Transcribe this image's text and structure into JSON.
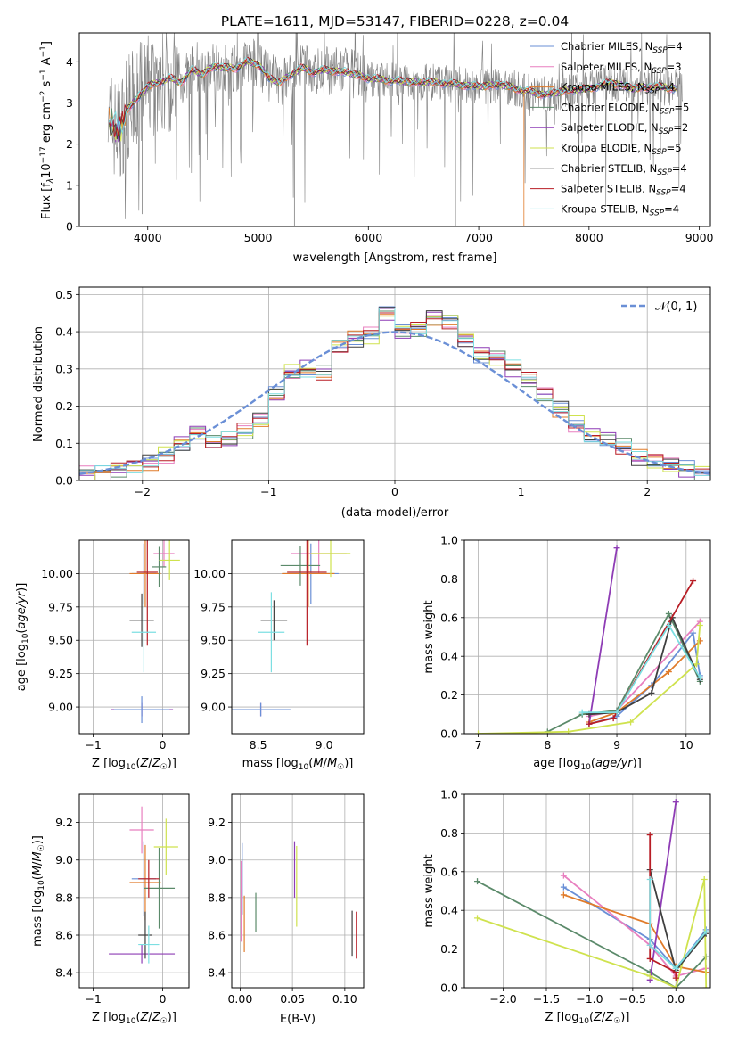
{
  "figure_title": "PLATE=1611, MJD=53147, FIBERID=0228, z=0.04",
  "colors": {
    "data": "#808080",
    "series": [
      "#6a8fd6",
      "#e87fbf",
      "#e07b2a",
      "#5b8a6a",
      "#8e3cb5",
      "#cfe24e",
      "#3f3f3f",
      "#b81d25",
      "#7ddfe2"
    ]
  },
  "chart_data": [
    {
      "type": "line",
      "panel": "spectrum",
      "title": "PLATE=1611, MJD=53147, FIBERID=0228, z=0.04",
      "xlabel": "wavelength [Angstrom, rest frame]",
      "ylabel": "Flux [f_λ 10^-17 erg cm^-2 s^-1 A^-1]",
      "xlim": [
        3380,
        9100
      ],
      "ylim": [
        0,
        4.7
      ],
      "xticks": [
        4000,
        5000,
        6000,
        7000,
        8000,
        9000
      ],
      "yticks": [
        0,
        1,
        2,
        3,
        4
      ],
      "legend": "right",
      "series_names": [
        "Chabrier MILES, N_SSP=4",
        "Salpeter MILES, N_SSP=3",
        "Kroupa MILES, N_SSP=4",
        "Chabrier ELODIE, N_SSP=5",
        "Salpeter ELODIE, N_SSP=2",
        "Kroupa ELODIE, N_SSP=5",
        "Chabrier STELIB, N_SSP=4",
        "Salpeter STELIB, N_SSP=4",
        "Kroupa STELIB, N_SSP=4"
      ],
      "model_continuum": {
        "x": [
          3650,
          3700,
          3750,
          3800,
          3900,
          4000,
          4100,
          4200,
          4300,
          4400,
          4500,
          4600,
          4700,
          4800,
          4900,
          5000,
          5100,
          5200,
          5300,
          5400,
          5500,
          5600,
          5800,
          6000,
          6200,
          6400,
          6600,
          6800,
          7000,
          7200,
          7400,
          7600,
          7800,
          8000,
          8200,
          8400,
          8600,
          8800
        ],
        "y": [
          2.6,
          2.4,
          2.3,
          2.8,
          3.1,
          3.4,
          3.5,
          3.6,
          3.5,
          3.8,
          3.7,
          3.9,
          3.85,
          3.85,
          4.0,
          3.95,
          3.6,
          3.5,
          3.7,
          3.85,
          3.75,
          3.8,
          3.75,
          3.6,
          3.55,
          3.5,
          3.5,
          3.45,
          3.4,
          3.45,
          3.3,
          3.2,
          3.3,
          3.35,
          3.5,
          3.35,
          3.4,
          3.35
        ]
      }
    },
    {
      "type": "line",
      "panel": "residuals",
      "xlabel": "(data-model)/error",
      "ylabel": "Normed distribution",
      "xlim": [
        -2.5,
        2.5
      ],
      "ylim": [
        0,
        0.52
      ],
      "xticks": [
        -2,
        -1,
        0,
        1,
        2
      ],
      "yticks": [
        0.0,
        0.1,
        0.2,
        0.3,
        0.4,
        0.5
      ],
      "grid": true,
      "legend": "top-right",
      "reference_label": "𝒩(0, 1)",
      "bin_edges": [
        -2.5,
        -2.375,
        -2.25,
        -2.125,
        -2.0,
        -1.875,
        -1.75,
        -1.625,
        -1.5,
        -1.375,
        -1.25,
        -1.125,
        -1.0,
        -0.875,
        -0.75,
        -0.625,
        -0.5,
        -0.375,
        -0.25,
        -0.125,
        0.0,
        0.125,
        0.25,
        0.375,
        0.5,
        0.625,
        0.75,
        0.875,
        1.0,
        1.125,
        1.25,
        1.375,
        1.5,
        1.625,
        1.75,
        1.875,
        2.0,
        2.125,
        2.25,
        2.375,
        2.5
      ],
      "histogram_values": [
        0.02,
        0.02,
        0.03,
        0.04,
        0.05,
        0.07,
        0.1,
        0.13,
        0.1,
        0.11,
        0.13,
        0.16,
        0.23,
        0.29,
        0.3,
        0.29,
        0.36,
        0.38,
        0.39,
        0.45,
        0.4,
        0.41,
        0.44,
        0.43,
        0.38,
        0.34,
        0.33,
        0.3,
        0.27,
        0.23,
        0.19,
        0.15,
        0.12,
        0.11,
        0.09,
        0.06,
        0.05,
        0.04,
        0.03,
        0.02
      ]
    },
    {
      "type": "scatter",
      "panel": "age_vs_Z",
      "xlabel": "Z [log10(Z/Z☉)]",
      "ylabel": "age [log10(age/yr)]",
      "xlim": [
        -1.2,
        0.38
      ],
      "ylim": [
        8.8,
        10.25
      ],
      "xticks": [
        -1,
        0
      ],
      "yticks": [
        9.0,
        9.25,
        9.5,
        9.75,
        10.0
      ],
      "grid": true,
      "points": [
        {
          "x": -0.27,
          "y": 10.0,
          "xerr": 0.35,
          "yerr": 0.45
        },
        {
          "x": 0.02,
          "y": 10.15,
          "xerr": 0.3,
          "yerr": 0.2
        },
        {
          "x": -0.25,
          "y": 10.0,
          "xerr": 0.45,
          "yerr": 0.5
        },
        {
          "x": -0.05,
          "y": 10.05,
          "xerr": 0.2,
          "yerr": 0.3
        },
        {
          "x": -0.3,
          "y": 8.98,
          "xerr": 0.9,
          "yerr": 0.1
        },
        {
          "x": 0.1,
          "y": 10.1,
          "xerr": 0.3,
          "yerr": 0.3
        },
        {
          "x": -0.3,
          "y": 9.65,
          "xerr": 0.35,
          "yerr": 0.4
        },
        {
          "x": -0.22,
          "y": 10.01,
          "xerr": 0.3,
          "yerr": 1.1
        },
        {
          "x": -0.27,
          "y": 9.56,
          "xerr": 0.35,
          "yerr": 0.6
        },
        {
          "x": -0.3,
          "y": 8.98,
          "xerr": 0.8,
          "yerr": 0.2
        }
      ]
    },
    {
      "type": "scatter",
      "panel": "age_vs_mass",
      "xlabel": "mass [log10(M/M☉)]",
      "ylabel": "",
      "xlim": [
        8.3,
        9.3
      ],
      "ylim": [
        8.8,
        10.25
      ],
      "xticks": [
        8.5,
        9.0
      ],
      "yticks": [
        9.0,
        9.25,
        9.5,
        9.75,
        10.0
      ],
      "grid": true,
      "points": [
        {
          "x": 8.9,
          "y": 10.0,
          "xerr": 0.42,
          "yerr": 0.45
        },
        {
          "x": 8.96,
          "y": 10.15,
          "xerr": 0.42,
          "yerr": 0.3
        },
        {
          "x": 8.88,
          "y": 10.0,
          "xerr": 0.4,
          "yerr": 0.5
        },
        {
          "x": 8.82,
          "y": 10.06,
          "xerr": 0.3,
          "yerr": 0.3
        },
        {
          "x": 8.52,
          "y": 8.98,
          "xerr": 0.3,
          "yerr": 0.1
        },
        {
          "x": 9.05,
          "y": 10.15,
          "xerr": 0.3,
          "yerr": 0.35
        },
        {
          "x": 8.62,
          "y": 9.65,
          "xerr": 0.2,
          "yerr": 0.3
        },
        {
          "x": 8.87,
          "y": 10.01,
          "xerr": 0.3,
          "yerr": 1.1
        },
        {
          "x": 8.6,
          "y": 9.56,
          "xerr": 0.2,
          "yerr": 0.6
        },
        {
          "x": 8.52,
          "y": 8.98,
          "xerr": 0.45,
          "yerr": 0.1
        }
      ]
    },
    {
      "type": "line",
      "panel": "mass_weight_vs_age",
      "xlabel": "age [log10(age/yr)]",
      "ylabel": "mass weight",
      "xlim": [
        6.8,
        10.35
      ],
      "ylim": [
        0,
        1.0
      ],
      "xticks": [
        7,
        8,
        9,
        10
      ],
      "yticks": [
        0.0,
        0.2,
        0.4,
        0.6,
        0.8,
        1.0
      ],
      "grid": true,
      "series": [
        {
          "x": [
            8.6,
            9.0,
            9.5,
            10.1,
            10.2
          ],
          "y": [
            0.05,
            0.09,
            0.25,
            0.52,
            0.3
          ]
        },
        {
          "x": [
            8.6,
            9.0,
            10.2
          ],
          "y": [
            0.09,
            0.12,
            0.58
          ]
        },
        {
          "x": [
            8.6,
            9.0,
            9.75,
            10.2
          ],
          "y": [
            0.06,
            0.11,
            0.32,
            0.48
          ]
        },
        {
          "x": [
            8.0,
            8.5,
            9.0,
            9.75,
            10.2
          ],
          "y": [
            0.01,
            0.1,
            0.12,
            0.62,
            0.27
          ]
        },
        {
          "x": [
            8.6,
            9.0
          ],
          "y": [
            0.05,
            0.96
          ]
        },
        {
          "x": [
            7.0,
            8.3,
            9.2,
            10.15,
            10.2
          ],
          "y": [
            0.0,
            0.01,
            0.06,
            0.36,
            0.56
          ]
        },
        {
          "x": [
            8.6,
            9.0,
            9.5,
            9.8,
            10.2
          ],
          "y": [
            0.1,
            0.11,
            0.21,
            0.6,
            0.28
          ]
        },
        {
          "x": [
            8.6,
            8.95,
            10.1
          ],
          "y": [
            0.05,
            0.08,
            0.79
          ]
        },
        {
          "x": [
            8.5,
            9.0,
            9.75,
            10.2
          ],
          "y": [
            0.11,
            0.11,
            0.56,
            0.29
          ]
        }
      ]
    },
    {
      "type": "scatter",
      "panel": "mass_vs_Z",
      "xlabel": "Z [log10(Z/Z☉)]",
      "ylabel": "mass [log10(M/M☉)]",
      "xlim": [
        -1.2,
        0.38
      ],
      "ylim": [
        8.32,
        9.35
      ],
      "xticks": [
        -1,
        0
      ],
      "yticks": [
        8.4,
        8.6,
        8.8,
        9.0,
        9.2
      ],
      "grid": true,
      "points": [
        {
          "x": -0.27,
          "y": 8.9,
          "xerr": 0.35,
          "yerr": 0.4
        },
        {
          "x": -0.3,
          "y": 9.16,
          "xerr": 0.35,
          "yerr": 0.25
        },
        {
          "x": -0.25,
          "y": 8.88,
          "xerr": 0.45,
          "yerr": 0.4
        },
        {
          "x": -0.05,
          "y": 8.85,
          "xerr": 0.45,
          "yerr": 0.43
        },
        {
          "x": -0.3,
          "y": 8.5,
          "xerr": 0.95,
          "yerr": 0.1
        },
        {
          "x": 0.05,
          "y": 9.07,
          "xerr": 0.35,
          "yerr": 0.3
        },
        {
          "x": -0.25,
          "y": 8.6,
          "xerr": 0.2,
          "yerr": 0.25
        },
        {
          "x": -0.2,
          "y": 8.9,
          "xerr": 0.3,
          "yerr": 0.2
        },
        {
          "x": -0.2,
          "y": 8.55,
          "xerr": 0.3,
          "yerr": 0.2
        }
      ]
    },
    {
      "type": "scatter",
      "panel": "mass_vs_EBV",
      "xlabel": "E(B-V)",
      "ylabel": "",
      "xlim": [
        -0.008,
        0.118
      ],
      "ylim": [
        8.32,
        9.35
      ],
      "xticks": [
        0.0,
        0.05,
        0.1
      ],
      "yticks": [
        8.4,
        8.6,
        8.8,
        9.0,
        9.2
      ],
      "grid": true,
      "points": [
        {
          "x": 0.002,
          "y": 8.9,
          "yerr": 0.38
        },
        {
          "x": 0.001,
          "y": 8.78,
          "yerr": 0.43
        },
        {
          "x": 0.004,
          "y": 8.66,
          "yerr": 0.3
        },
        {
          "x": 0.015,
          "y": 8.72,
          "yerr": 0.21
        },
        {
          "x": 0.052,
          "y": 8.95,
          "yerr": 0.3
        },
        {
          "x": 0.054,
          "y": 8.86,
          "yerr": 0.43
        },
        {
          "x": 0.107,
          "y": 8.61,
          "yerr": 0.24
        },
        {
          "x": 0.111,
          "y": 8.6,
          "yerr": 0.25
        }
      ]
    },
    {
      "type": "line",
      "panel": "mass_weight_vs_Z",
      "xlabel": "Z [log10(Z/Z☉)]",
      "ylabel": "mass weight",
      "xlim": [
        -2.45,
        0.4
      ],
      "ylim": [
        0,
        1.0
      ],
      "xticks": [
        -2.0,
        -1.5,
        -1.0,
        -0.5,
        0.0
      ],
      "yticks": [
        0.0,
        0.2,
        0.4,
        0.6,
        0.8,
        1.0
      ],
      "grid": true,
      "series": [
        {
          "x": [
            -1.3,
            -0.3,
            0.0,
            0.35
          ],
          "y": [
            0.52,
            0.25,
            0.1,
            0.3
          ]
        },
        {
          "x": [
            -1.3,
            -0.3,
            0.0,
            0.35
          ],
          "y": [
            0.58,
            0.22,
            0.06,
            0.1
          ]
        },
        {
          "x": [
            -1.3,
            -0.3,
            0.0,
            0.35
          ],
          "y": [
            0.48,
            0.33,
            0.11,
            0.08
          ]
        },
        {
          "x": [
            -2.3,
            -0.3,
            0.0,
            0.35
          ],
          "y": [
            0.55,
            0.08,
            0.0,
            0.16
          ]
        },
        {
          "x": [
            -0.3,
            0.0
          ],
          "y": [
            0.04,
            0.96
          ]
        },
        {
          "x": [
            -2.3,
            -0.3,
            0.0,
            0.33,
            0.35
          ],
          "y": [
            0.36,
            0.06,
            0.0,
            0.56,
            0.0
          ]
        },
        {
          "x": [
            -0.3,
            0.0,
            0.35
          ],
          "y": [
            0.61,
            0.09,
            0.28
          ]
        },
        {
          "x": [
            -0.3,
            -0.3,
            0.0,
            0.0
          ],
          "y": [
            0.79,
            0.15,
            0.08,
            0.05
          ]
        },
        {
          "x": [
            -0.3,
            -0.3,
            0.0,
            0.35
          ],
          "y": [
            0.56,
            0.22,
            0.1,
            0.29
          ]
        }
      ]
    }
  ],
  "labels": {
    "spec_xlabel": "wavelength [Angstrom, rest frame]",
    "res_xlabel": "(data-model)/error",
    "res_ylabel": "Normed distribution",
    "mass_weight": "mass weight",
    "ebv": "E(B-V)"
  }
}
